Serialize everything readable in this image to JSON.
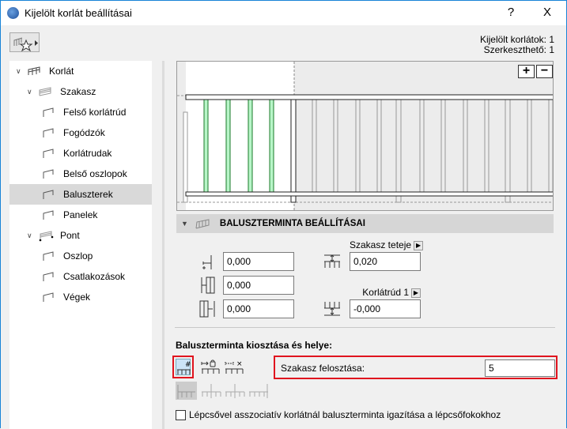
{
  "window": {
    "title": "Kijelölt korlát beállításai",
    "help": "?",
    "close": "X"
  },
  "info": {
    "selected": "Kijelölt korlátok: 1",
    "editable": "Szerkeszthető: 1"
  },
  "tree": [
    {
      "label": "Korlát",
      "level": 0,
      "icon": "railing-icon"
    },
    {
      "label": "Szakasz",
      "level": 1,
      "icon": "segment-icon"
    },
    {
      "label": "Felső korlátrúd",
      "level": 2,
      "icon": "top-rail-icon"
    },
    {
      "label": "Fogódzók",
      "level": 2,
      "icon": "handrail-icon"
    },
    {
      "label": "Korlátrudak",
      "level": 2,
      "icon": "rails-icon"
    },
    {
      "label": "Belső oszlopok",
      "level": 2,
      "icon": "inner-post-icon"
    },
    {
      "label": "Baluszterek",
      "level": 2,
      "icon": "baluster-icon",
      "selected": true
    },
    {
      "label": "Panelek",
      "level": 2,
      "icon": "panel-icon"
    },
    {
      "label": "Pont",
      "level": 1,
      "icon": "node-icon"
    },
    {
      "label": "Oszlop",
      "level": 2,
      "icon": "post-icon"
    },
    {
      "label": "Csatlakozások",
      "level": 2,
      "icon": "connection-icon"
    },
    {
      "label": "Végek",
      "level": 2,
      "icon": "end-icon"
    }
  ],
  "preview": {
    "zoom_in": "+",
    "zoom_out": "−",
    "highlight_color": "#b8f5c8"
  },
  "panel": {
    "header": "BALUSZTERMINTA BEÁLLÍTÁSAI",
    "left_fields": [
      "0,000",
      "0,000",
      "0,000"
    ],
    "top_ref_label": "Szakasz teteje",
    "top_value": "0,020",
    "bottom_ref_label": "Korlátrúd 1",
    "bottom_value": "-0,000"
  },
  "distribution": {
    "title": "Baluszterminta kiosztása és helye:",
    "mode_symbols": [
      "#",
      "🔒",
      "×"
    ],
    "division_label": "Szakasz felosztása:",
    "division_value": "5"
  },
  "checkbox": {
    "label": "Lépcsővel asszociatív korlátnál baluszterminta igazítása a lépcsőfokokhoz",
    "checked": false
  },
  "colors": {
    "accent": "#1883d7",
    "highlight": "#e0141e",
    "selected_button": "#cce4f7"
  }
}
